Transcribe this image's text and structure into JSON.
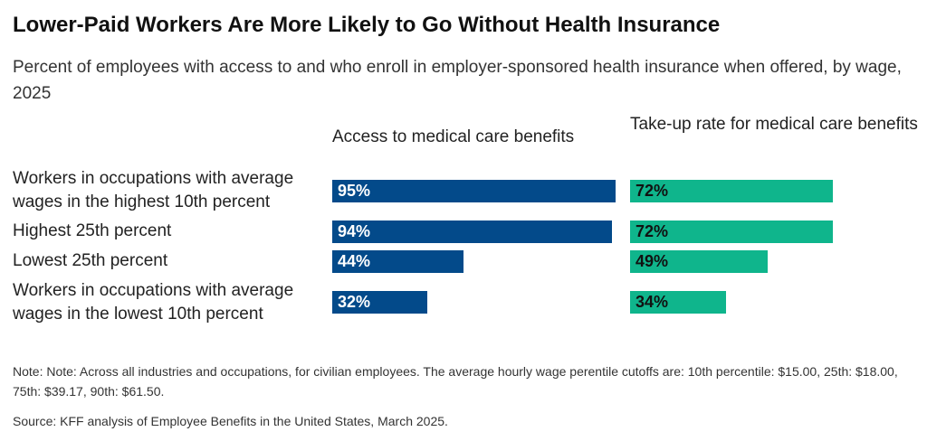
{
  "title": "Lower-Paid Workers Are More Likely to Go Without Health Insurance",
  "subtitle": "Percent of employees with access to and who enroll in employer-sponsored health insurance when offered, by wage,  2025",
  "note": "Note: Note: Across all industries and occupations, for civilian employees. The average hourly wage perentile cutoffs are: 10th percentile: $15.00, 25th: $18.00, 75th: $39.17, 90th: $61.50.",
  "source": "Source: KFF analysis of Employee Benefits in the United States, March 2025.",
  "chart_data": {
    "type": "bar",
    "orientation": "horizontal",
    "categories": [
      "Workers in occupations with average wages in the highest 10th percent",
      "Highest 25th percent",
      "Lowest 25th percent",
      "Workers in occupations with average wages in the lowest 10th percent"
    ],
    "series": [
      {
        "name": "Access to medical care benefits",
        "values": [
          95,
          94,
          44,
          32
        ],
        "labels": [
          "95%",
          "94%",
          "44%",
          "32%"
        ],
        "color": "#034a8a",
        "label_color": "#ffffff"
      },
      {
        "name": "Take-up rate for medical care benefits",
        "values": [
          72,
          72,
          49,
          34
        ],
        "labels": [
          "72%",
          "72%",
          "49%",
          "34%"
        ],
        "color": "#0fb58c",
        "label_color": "#111111"
      }
    ],
    "xlim": [
      0,
      100
    ],
    "grid": false,
    "legend": "none"
  }
}
